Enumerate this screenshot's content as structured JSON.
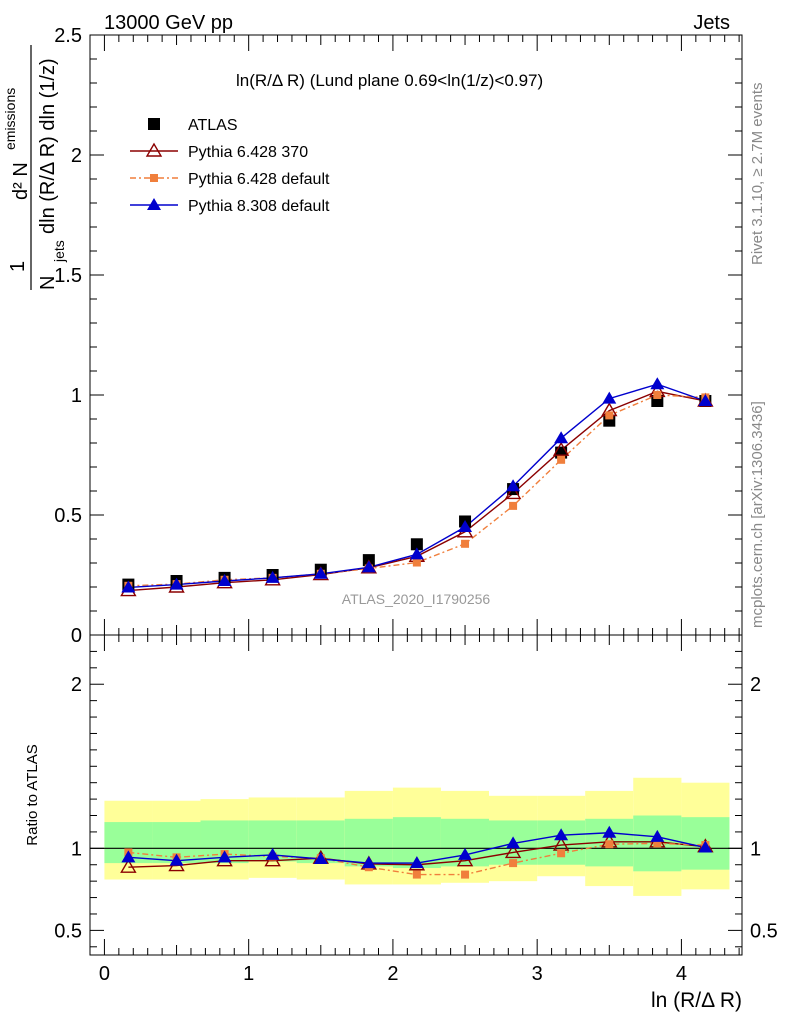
{
  "header": {
    "left": "13000 GeV pp",
    "right": "Jets"
  },
  "side_labels": {
    "rivet": "Rivet 3.1.10, ≥ 2.7M events",
    "mcplots": "mcplots.cern.ch [arXiv:1306.3436]"
  },
  "colors": {
    "atlas": "#000000",
    "p6_370": "#8b0000",
    "p6_default": "#f07f3c",
    "p8_default": "#0000cd",
    "band_outer": "#ffff99",
    "band_inner": "#99ff99"
  },
  "chart_data": [
    {
      "type": "scatter",
      "panel": "main",
      "title": "ln(R/Δ R) (Lund plane 0.69<ln(1/z)<0.97)",
      "watermark": "ATLAS_2020_I1790256",
      "ylabel": {
        "numer": "d² N",
        "numer_sub": "emissions",
        "denom": "N",
        "denom_sub": "jets",
        "denom_rest": "dln (R/Δ R) dln (1/z)",
        "one": "1"
      },
      "xlim": [
        -0.1,
        4.42
      ],
      "ylim": [
        0,
        2.5
      ],
      "yticks": [
        0,
        0.5,
        1,
        1.5,
        2,
        2.5
      ],
      "yticklabels": [
        "0",
        "0.5",
        "1",
        "1.5",
        "2",
        "2.5"
      ],
      "legend_position": "top-left",
      "x": [
        0.166,
        0.5,
        0.833,
        1.166,
        1.5,
        1.833,
        2.166,
        2.5,
        2.833,
        3.166,
        3.5,
        3.833,
        4.166
      ],
      "series": [
        {
          "name": "ATLAS",
          "key": "atlas",
          "marker": "square",
          "values": [
            0.21,
            0.225,
            0.238,
            0.25,
            0.272,
            0.312,
            0.378,
            0.473,
            0.608,
            0.76,
            0.893,
            0.975,
            0.975
          ]
        },
        {
          "name": "Pythia 6.428 370",
          "key": "p6_370",
          "marker": "open-triangle",
          "line": "solid",
          "values": [
            0.185,
            0.2,
            0.218,
            0.23,
            0.252,
            0.28,
            0.328,
            0.43,
            0.59,
            0.77,
            0.935,
            1.015,
            0.975
          ]
        },
        {
          "name": "Pythia 6.428 default",
          "key": "p6_default",
          "marker": "small-square",
          "line": "dashdot",
          "values": [
            0.205,
            0.212,
            0.23,
            0.238,
            0.255,
            0.277,
            0.302,
            0.38,
            0.538,
            0.73,
            0.915,
            1.0,
            0.99
          ]
        },
        {
          "name": "Pythia 8.308 default",
          "key": "p8_default",
          "marker": "filled-triangle",
          "line": "solid",
          "values": [
            0.198,
            0.21,
            0.225,
            0.238,
            0.255,
            0.282,
            0.336,
            0.45,
            0.62,
            0.82,
            0.985,
            1.045,
            0.975
          ]
        }
      ]
    },
    {
      "type": "scatter",
      "panel": "ratio",
      "ylabel": "Ratio to ATLAS",
      "xlabel": "ln (R/Δ R)",
      "xlim": [
        -0.1,
        4.42
      ],
      "ylim": [
        0.35,
        2.3
      ],
      "xticks": [
        0,
        1,
        2,
        3,
        4
      ],
      "xticklabels": [
        "0",
        "1",
        "2",
        "3",
        "4"
      ],
      "yticks": [
        0.5,
        1,
        2
      ],
      "yticklabels": [
        "0.5",
        "1",
        "2"
      ],
      "x": [
        0.166,
        0.5,
        0.833,
        1.166,
        1.5,
        1.833,
        2.166,
        2.5,
        2.833,
        3.166,
        3.5,
        3.833,
        4.166
      ],
      "bands": {
        "edges": [
          0,
          0.333,
          0.666,
          1.0,
          1.333,
          1.666,
          2.0,
          2.333,
          2.666,
          3.0,
          3.333,
          3.666,
          4.0,
          4.333
        ],
        "outer_low": [
          0.81,
          0.81,
          0.81,
          0.82,
          0.81,
          0.78,
          0.78,
          0.79,
          0.8,
          0.83,
          0.77,
          0.71,
          0.75
        ],
        "outer_high": [
          1.29,
          1.29,
          1.3,
          1.31,
          1.31,
          1.35,
          1.37,
          1.35,
          1.32,
          1.32,
          1.35,
          1.43,
          1.4
        ],
        "inner_low": [
          0.91,
          0.91,
          0.91,
          0.92,
          0.91,
          0.89,
          0.88,
          0.89,
          0.9,
          0.9,
          0.89,
          0.86,
          0.87
        ],
        "inner_high": [
          1.16,
          1.16,
          1.17,
          1.17,
          1.17,
          1.18,
          1.19,
          1.18,
          1.17,
          1.17,
          1.18,
          1.2,
          1.19
        ]
      },
      "series": [
        {
          "name": "Pythia 6.428 370",
          "key": "p6_370",
          "marker": "open-triangle",
          "line": "solid",
          "values": [
            0.885,
            0.895,
            0.925,
            0.925,
            0.94,
            0.905,
            0.9,
            0.925,
            0.975,
            1.02,
            1.04,
            1.04,
            1.01
          ]
        },
        {
          "name": "Pythia 6.428 default",
          "key": "p6_default",
          "marker": "small-square",
          "line": "dashdot",
          "values": [
            0.975,
            0.945,
            0.965,
            0.95,
            0.94,
            0.885,
            0.84,
            0.84,
            0.91,
            0.97,
            1.025,
            1.03,
            1.02
          ]
        },
        {
          "name": "Pythia 8.308 default",
          "key": "p8_default",
          "marker": "filled-triangle",
          "line": "solid",
          "values": [
            0.945,
            0.925,
            0.945,
            0.96,
            0.935,
            0.91,
            0.91,
            0.96,
            1.03,
            1.08,
            1.095,
            1.07,
            1.005
          ]
        }
      ]
    }
  ]
}
